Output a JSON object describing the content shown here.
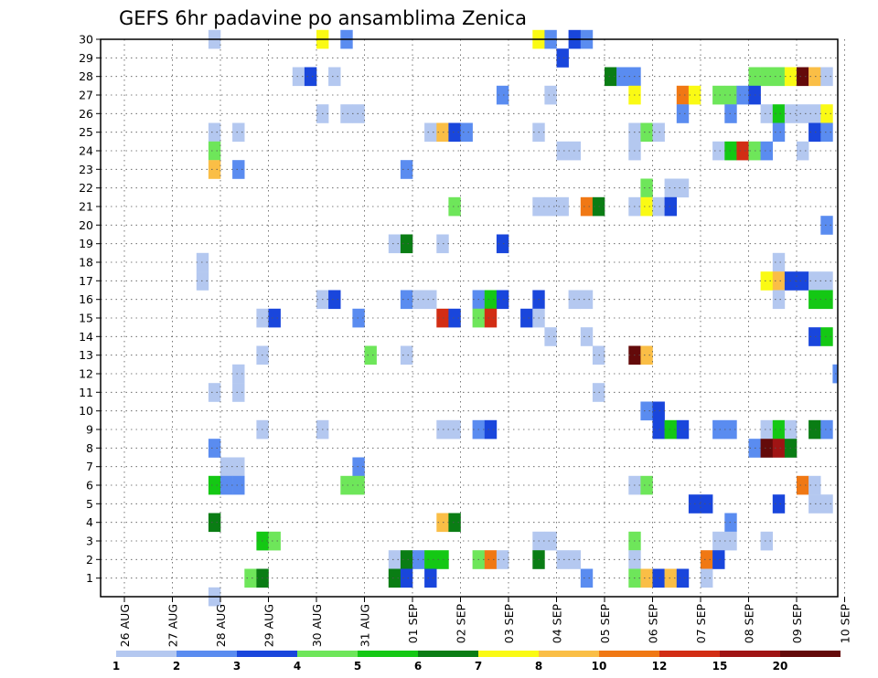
{
  "chart_data": {
    "type": "heatmap",
    "title": "GEFS 6hr padavine po ansamblima Zenica",
    "xlabel": "",
    "ylabel": "",
    "x_ticks": [
      "26 AUG",
      "27 AUG",
      "28 AUG",
      "29 AUG",
      "30 AUG",
      "31 AUG",
      "01 SEP",
      "02 SEP",
      "03 SEP",
      "04 SEP",
      "05 SEP",
      "06 SEP",
      "07 SEP",
      "08 SEP",
      "09 SEP",
      "10 SEP"
    ],
    "y_ticks": [
      1,
      2,
      3,
      4,
      5,
      6,
      7,
      8,
      9,
      10,
      11,
      12,
      13,
      14,
      15,
      16,
      17,
      18,
      19,
      20,
      21,
      22,
      23,
      24,
      25,
      26,
      27,
      28,
      29,
      30
    ],
    "xlim_steps": [
      0,
      60
    ],
    "ylim": [
      0.5,
      30.5
    ],
    "grid": true,
    "legend": {
      "placement": "bottom",
      "labels": [
        "1",
        "2",
        "3",
        "4",
        "5",
        "6",
        "7",
        "8",
        "10",
        "12",
        "15",
        "20"
      ],
      "colors": [
        "#b4c8f0",
        "#5a8cf0",
        "#1946dc",
        "#6ee65a",
        "#14c814",
        "#0a7d14",
        "#fafa14",
        "#fabe46",
        "#f07814",
        "#d22d14",
        "#a01414",
        "#640a0a"
      ]
    },
    "levels": [
      1,
      2,
      3,
      4,
      5,
      6,
      7,
      8,
      10,
      12,
      15,
      20
    ],
    "cells": [
      [
        30,
        7,
        0
      ],
      [
        30,
        16,
        6
      ],
      [
        30,
        18,
        1
      ],
      [
        30,
        34,
        6
      ],
      [
        30,
        35,
        1
      ],
      [
        30,
        37,
        2
      ],
      [
        30,
        38,
        1
      ],
      [
        29,
        36,
        2
      ],
      [
        28,
        14,
        0
      ],
      [
        28,
        15,
        2
      ],
      [
        28,
        17,
        0
      ],
      [
        28,
        40,
        5
      ],
      [
        28,
        41,
        1
      ],
      [
        28,
        42,
        1
      ],
      [
        28,
        52,
        3
      ],
      [
        28,
        53,
        3
      ],
      [
        28,
        54,
        3
      ],
      [
        28,
        55,
        6
      ],
      [
        28,
        56,
        11
      ],
      [
        28,
        57,
        7
      ],
      [
        28,
        58,
        0
      ],
      [
        27,
        31,
        1
      ],
      [
        27,
        35,
        0
      ],
      [
        27,
        42,
        6
      ],
      [
        27,
        46,
        8
      ],
      [
        27,
        47,
        6
      ],
      [
        27,
        49,
        3
      ],
      [
        27,
        50,
        3
      ],
      [
        27,
        51,
        1
      ],
      [
        27,
        52,
        2
      ],
      [
        26,
        16,
        0
      ],
      [
        26,
        18,
        0
      ],
      [
        26,
        19,
        0
      ],
      [
        26,
        46,
        1
      ],
      [
        26,
        50,
        1
      ],
      [
        26,
        53,
        0
      ],
      [
        26,
        54,
        4
      ],
      [
        26,
        55,
        0
      ],
      [
        26,
        56,
        0
      ],
      [
        26,
        57,
        0
      ],
      [
        26,
        58,
        6
      ],
      [
        25,
        7,
        0
      ],
      [
        25,
        9,
        0
      ],
      [
        25,
        25,
        0
      ],
      [
        25,
        26,
        7
      ],
      [
        25,
        27,
        2
      ],
      [
        25,
        28,
        1
      ],
      [
        25,
        34,
        0
      ],
      [
        25,
        42,
        0
      ],
      [
        25,
        43,
        3
      ],
      [
        25,
        44,
        0
      ],
      [
        25,
        54,
        1
      ],
      [
        25,
        57,
        2
      ],
      [
        25,
        58,
        1
      ],
      [
        24,
        7,
        3
      ],
      [
        24,
        36,
        0
      ],
      [
        24,
        37,
        0
      ],
      [
        24,
        42,
        0
      ],
      [
        24,
        49,
        0
      ],
      [
        24,
        50,
        4
      ],
      [
        24,
        51,
        9
      ],
      [
        24,
        52,
        3
      ],
      [
        24,
        53,
        1
      ],
      [
        24,
        56,
        0
      ],
      [
        23,
        7,
        7
      ],
      [
        23,
        9,
        1
      ],
      [
        23,
        23,
        1
      ],
      [
        22,
        43,
        3
      ],
      [
        22,
        45,
        0
      ],
      [
        22,
        46,
        0
      ],
      [
        21,
        27,
        3
      ],
      [
        21,
        34,
        0
      ],
      [
        21,
        35,
        0
      ],
      [
        21,
        36,
        0
      ],
      [
        21,
        38,
        8
      ],
      [
        21,
        39,
        5
      ],
      [
        21,
        42,
        0
      ],
      [
        21,
        43,
        6
      ],
      [
        21,
        44,
        0
      ],
      [
        21,
        45,
        2
      ],
      [
        20,
        58,
        1
      ],
      [
        19,
        22,
        0
      ],
      [
        19,
        23,
        5
      ],
      [
        19,
        26,
        0
      ],
      [
        19,
        31,
        2
      ],
      [
        18,
        6,
        0
      ],
      [
        18,
        54,
        0
      ],
      [
        17,
        6,
        0
      ],
      [
        17,
        53,
        6
      ],
      [
        17,
        54,
        7
      ],
      [
        17,
        55,
        2
      ],
      [
        17,
        56,
        2
      ],
      [
        17,
        57,
        0
      ],
      [
        17,
        58,
        0
      ],
      [
        16,
        16,
        0
      ],
      [
        16,
        17,
        2
      ],
      [
        16,
        23,
        1
      ],
      [
        16,
        24,
        0
      ],
      [
        16,
        25,
        0
      ],
      [
        16,
        29,
        1
      ],
      [
        16,
        30,
        4
      ],
      [
        16,
        31,
        2
      ],
      [
        16,
        34,
        2
      ],
      [
        16,
        37,
        0
      ],
      [
        16,
        38,
        0
      ],
      [
        16,
        54,
        0
      ],
      [
        16,
        57,
        4
      ],
      [
        16,
        58,
        4
      ],
      [
        15,
        11,
        0
      ],
      [
        15,
        12,
        2
      ],
      [
        15,
        19,
        1
      ],
      [
        15,
        26,
        9
      ],
      [
        15,
        27,
        2
      ],
      [
        15,
        29,
        3
      ],
      [
        15,
        30,
        9
      ],
      [
        15,
        33,
        2
      ],
      [
        15,
        34,
        0
      ],
      [
        14,
        35,
        0
      ],
      [
        14,
        38,
        0
      ],
      [
        14,
        57,
        2
      ],
      [
        14,
        58,
        4
      ],
      [
        13,
        11,
        0
      ],
      [
        13,
        20,
        3
      ],
      [
        13,
        23,
        0
      ],
      [
        13,
        39,
        0
      ],
      [
        13,
        42,
        11
      ],
      [
        13,
        43,
        7
      ],
      [
        12,
        9,
        0
      ],
      [
        12,
        59,
        1
      ],
      [
        11,
        9,
        0
      ],
      [
        11,
        7,
        0
      ],
      [
        11,
        39,
        0
      ],
      [
        10,
        43,
        1
      ],
      [
        10,
        44,
        2
      ],
      [
        9,
        11,
        0
      ],
      [
        9,
        16,
        0
      ],
      [
        9,
        26,
        0
      ],
      [
        9,
        27,
        0
      ],
      [
        9,
        29,
        1
      ],
      [
        9,
        30,
        2
      ],
      [
        9,
        44,
        2
      ],
      [
        9,
        45,
        4
      ],
      [
        9,
        46,
        2
      ],
      [
        9,
        49,
        1
      ],
      [
        9,
        50,
        1
      ],
      [
        9,
        53,
        0
      ],
      [
        9,
        54,
        4
      ],
      [
        9,
        55,
        0
      ],
      [
        9,
        57,
        5
      ],
      [
        9,
        58,
        1
      ],
      [
        8,
        7,
        1
      ],
      [
        8,
        52,
        1
      ],
      [
        8,
        53,
        11
      ],
      [
        8,
        54,
        10
      ],
      [
        8,
        55,
        5
      ],
      [
        7,
        8,
        0
      ],
      [
        7,
        9,
        0
      ],
      [
        7,
        19,
        1
      ],
      [
        6,
        7,
        4
      ],
      [
        6,
        8,
        1
      ],
      [
        6,
        9,
        1
      ],
      [
        6,
        18,
        3
      ],
      [
        6,
        19,
        3
      ],
      [
        6,
        42,
        0
      ],
      [
        6,
        43,
        3
      ],
      [
        6,
        56,
        8
      ],
      [
        6,
        57,
        0
      ],
      [
        5,
        47,
        2
      ],
      [
        5,
        48,
        2
      ],
      [
        5,
        54,
        2
      ],
      [
        5,
        57,
        0
      ],
      [
        5,
        58,
        0
      ],
      [
        4,
        7,
        5
      ],
      [
        4,
        26,
        7
      ],
      [
        4,
        27,
        5
      ],
      [
        4,
        50,
        1
      ],
      [
        3,
        11,
        4
      ],
      [
        3,
        12,
        3
      ],
      [
        3,
        34,
        0
      ],
      [
        3,
        35,
        0
      ],
      [
        3,
        42,
        3
      ],
      [
        3,
        49,
        0
      ],
      [
        3,
        50,
        0
      ],
      [
        3,
        53,
        0
      ],
      [
        2,
        22,
        0
      ],
      [
        2,
        23,
        5
      ],
      [
        2,
        24,
        1
      ],
      [
        2,
        25,
        4
      ],
      [
        2,
        26,
        4
      ],
      [
        2,
        29,
        3
      ],
      [
        2,
        30,
        8
      ],
      [
        2,
        31,
        0
      ],
      [
        2,
        34,
        5
      ],
      [
        2,
        36,
        0
      ],
      [
        2,
        37,
        0
      ],
      [
        2,
        42,
        0
      ],
      [
        2,
        48,
        8
      ],
      [
        2,
        49,
        2
      ],
      [
        1,
        10,
        3
      ],
      [
        1,
        11,
        5
      ],
      [
        1,
        22,
        5
      ],
      [
        1,
        23,
        2
      ],
      [
        1,
        25,
        2
      ],
      [
        1,
        38,
        1
      ],
      [
        1,
        42,
        3
      ],
      [
        1,
        43,
        7
      ],
      [
        1,
        44,
        2
      ],
      [
        1,
        45,
        7
      ],
      [
        1,
        46,
        2
      ],
      [
        1,
        48,
        0
      ],
      [
        0,
        7,
        0
      ]
    ]
  }
}
